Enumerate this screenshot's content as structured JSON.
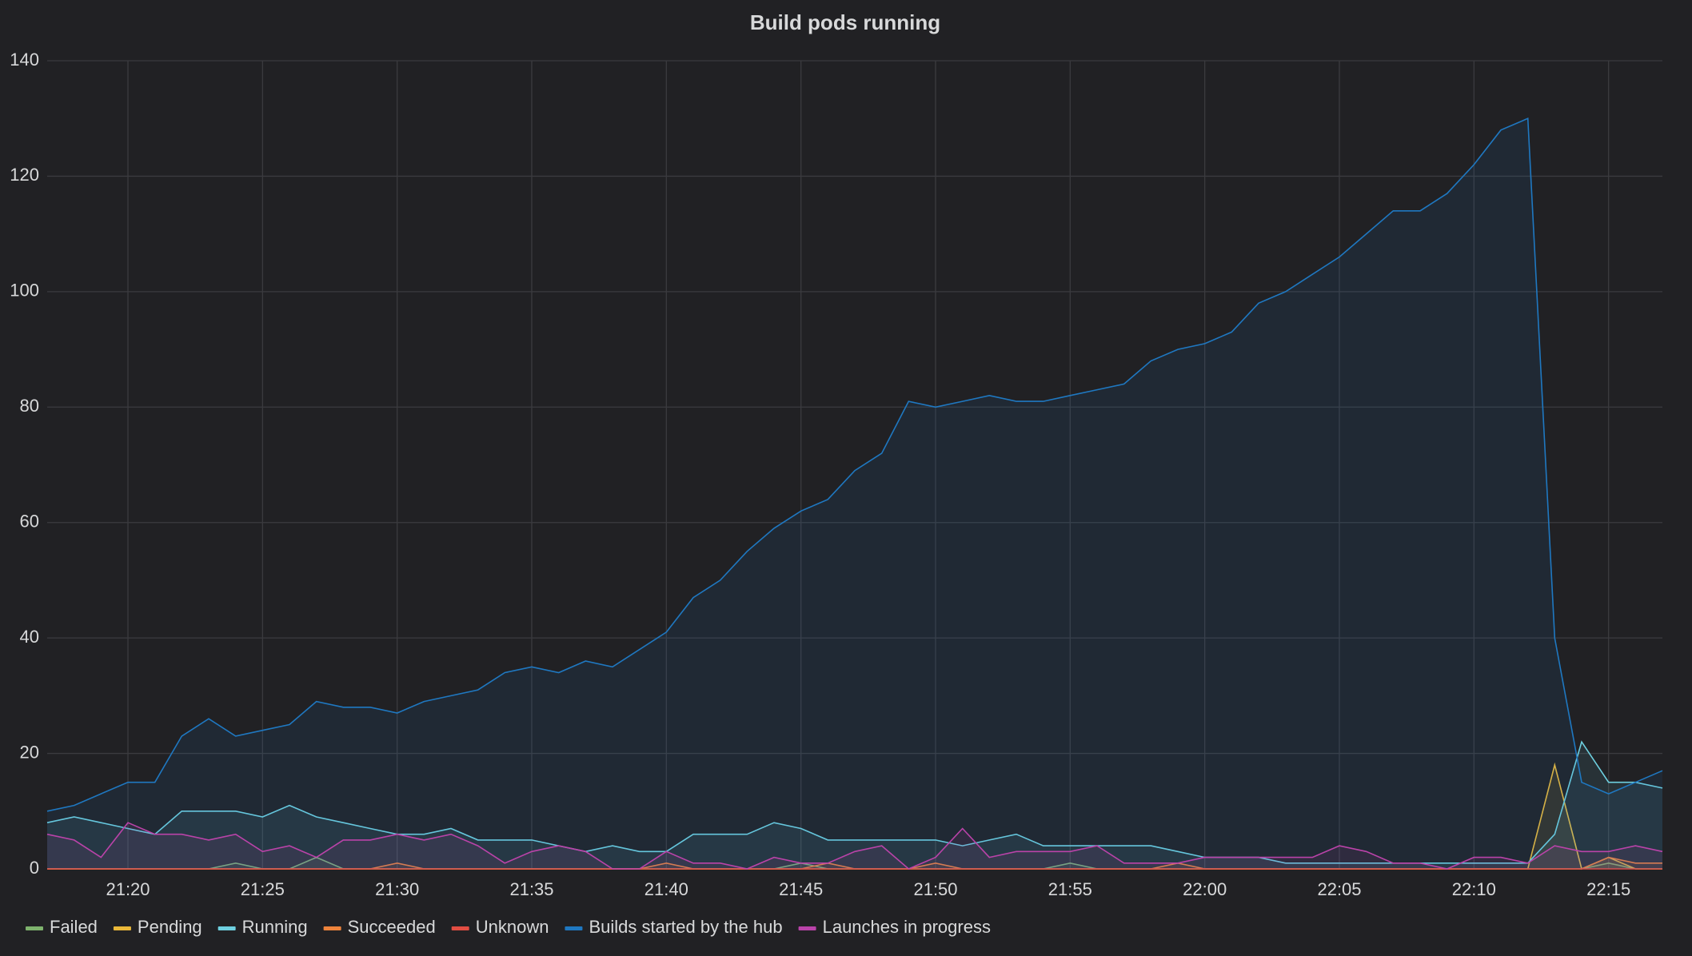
{
  "chart_data": {
    "type": "line",
    "title": "Build pods running",
    "x": [
      "21:17",
      "21:18",
      "21:19",
      "21:20",
      "21:21",
      "21:22",
      "21:23",
      "21:24",
      "21:25",
      "21:26",
      "21:27",
      "21:28",
      "21:29",
      "21:30",
      "21:31",
      "21:32",
      "21:33",
      "21:34",
      "21:35",
      "21:36",
      "21:37",
      "21:38",
      "21:39",
      "21:40",
      "21:41",
      "21:42",
      "21:43",
      "21:44",
      "21:45",
      "21:46",
      "21:47",
      "21:48",
      "21:49",
      "21:50",
      "21:51",
      "21:52",
      "21:53",
      "21:54",
      "21:55",
      "21:56",
      "21:57",
      "21:58",
      "21:59",
      "22:00",
      "22:01",
      "22:02",
      "22:03",
      "22:04",
      "22:05",
      "22:06",
      "22:07",
      "22:08",
      "22:09",
      "22:10",
      "22:11",
      "22:12",
      "22:13",
      "22:14",
      "22:15",
      "22:16",
      "22:17"
    ],
    "series": [
      {
        "name": "Failed",
        "color": "#7eb26d",
        "values": [
          0,
          0,
          0,
          0,
          0,
          0,
          0,
          1,
          0,
          0,
          2,
          0,
          0,
          0,
          0,
          0,
          0,
          0,
          0,
          0,
          0,
          0,
          0,
          0,
          0,
          0,
          0,
          0,
          1,
          0,
          0,
          0,
          0,
          0,
          0,
          0,
          0,
          0,
          1,
          0,
          0,
          0,
          0,
          0,
          0,
          0,
          0,
          0,
          0,
          0,
          0,
          0,
          0,
          0,
          0,
          0,
          0,
          0,
          1,
          0,
          0
        ]
      },
      {
        "name": "Pending",
        "color": "#eab839",
        "values": [
          0,
          0,
          0,
          0,
          0,
          0,
          0,
          0,
          0,
          0,
          0,
          0,
          0,
          0,
          0,
          0,
          0,
          0,
          0,
          0,
          0,
          0,
          0,
          0,
          0,
          0,
          0,
          0,
          0,
          0,
          0,
          0,
          0,
          0,
          0,
          0,
          0,
          0,
          0,
          0,
          0,
          0,
          0,
          0,
          0,
          0,
          0,
          0,
          0,
          0,
          0,
          0,
          0,
          0,
          0,
          0,
          18,
          0,
          2,
          0,
          0
        ]
      },
      {
        "name": "Running",
        "color": "#6ed0e0",
        "values": [
          8,
          9,
          8,
          7,
          6,
          10,
          10,
          10,
          9,
          11,
          9,
          8,
          7,
          6,
          6,
          7,
          5,
          5,
          5,
          4,
          3,
          4,
          3,
          3,
          6,
          6,
          6,
          8,
          7,
          5,
          5,
          5,
          5,
          5,
          4,
          5,
          6,
          4,
          4,
          4,
          4,
          4,
          3,
          2,
          2,
          2,
          1,
          1,
          1,
          1,
          1,
          1,
          1,
          1,
          1,
          1,
          6,
          22,
          15,
          15,
          14
        ]
      },
      {
        "name": "Succeeded",
        "color": "#ef843c",
        "values": [
          0,
          0,
          0,
          0,
          0,
          0,
          0,
          0,
          0,
          0,
          0,
          0,
          0,
          1,
          0,
          0,
          0,
          0,
          0,
          0,
          0,
          0,
          0,
          1,
          0,
          0,
          0,
          0,
          0,
          1,
          0,
          0,
          0,
          1,
          0,
          0,
          0,
          0,
          0,
          0,
          0,
          0,
          1,
          0,
          0,
          0,
          0,
          0,
          0,
          0,
          0,
          0,
          0,
          0,
          0,
          0,
          0,
          0,
          2,
          1,
          1
        ]
      },
      {
        "name": "Unknown",
        "color": "#e24d42",
        "values": [
          0,
          0,
          0,
          0,
          0,
          0,
          0,
          0,
          0,
          0,
          0,
          0,
          0,
          0,
          0,
          0,
          0,
          0,
          0,
          0,
          0,
          0,
          0,
          0,
          0,
          0,
          0,
          0,
          0,
          0,
          0,
          0,
          0,
          0,
          0,
          0,
          0,
          0,
          0,
          0,
          0,
          0,
          0,
          0,
          0,
          0,
          0,
          0,
          0,
          0,
          0,
          0,
          0,
          0,
          0,
          0,
          0,
          0,
          0,
          0,
          0
        ]
      },
      {
        "name": "Builds started by the hub",
        "color": "#1f78c1",
        "values": [
          10,
          11,
          13,
          15,
          15,
          23,
          26,
          23,
          24,
          25,
          29,
          28,
          28,
          27,
          29,
          30,
          31,
          34,
          35,
          34,
          36,
          35,
          38,
          41,
          47,
          50,
          55,
          59,
          62,
          64,
          69,
          72,
          81,
          80,
          81,
          82,
          81,
          81,
          82,
          83,
          84,
          88,
          90,
          91,
          93,
          98,
          100,
          103,
          106,
          110,
          114,
          114,
          117,
          122,
          128,
          130,
          40,
          15,
          13,
          15,
          17
        ]
      },
      {
        "name": "Launches in progress",
        "color": "#ba43a9",
        "values": [
          6,
          5,
          2,
          8,
          6,
          6,
          5,
          6,
          3,
          4,
          2,
          5,
          5,
          6,
          5,
          6,
          4,
          1,
          3,
          4,
          3,
          0,
          0,
          3,
          1,
          1,
          0,
          2,
          1,
          1,
          3,
          4,
          0,
          2,
          7,
          2,
          3,
          3,
          3,
          4,
          1,
          1,
          1,
          2,
          2,
          2,
          2,
          2,
          4,
          3,
          1,
          1,
          0,
          2,
          2,
          1,
          4,
          3,
          3,
          4,
          3
        ]
      }
    ],
    "xlim": [
      "21:17",
      "22:17"
    ],
    "xticks": [
      "21:20",
      "21:25",
      "21:30",
      "21:35",
      "21:40",
      "21:45",
      "21:50",
      "21:55",
      "22:00",
      "22:05",
      "22:10",
      "22:15"
    ],
    "ylim": [
      0,
      140
    ],
    "yticks": [
      0,
      20,
      40,
      60,
      80,
      100,
      120,
      140
    ],
    "grid": true,
    "legend": "bottom"
  }
}
